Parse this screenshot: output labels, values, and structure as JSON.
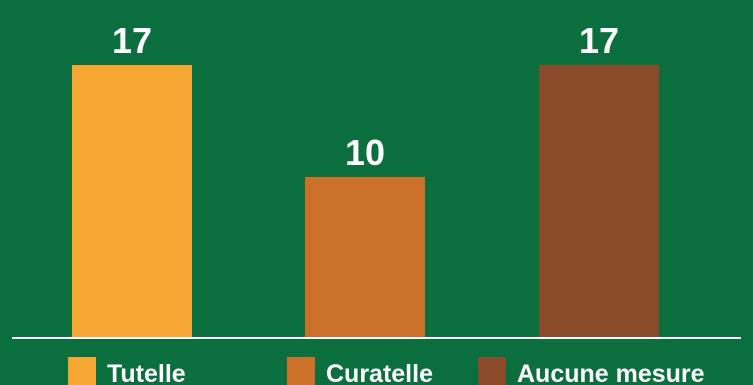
{
  "background_color": "#0b6e3f",
  "axis_color": "#ffffff",
  "chart_data": {
    "type": "bar",
    "categories": [
      "Tutelle",
      "Curatelle",
      "Aucune mesure"
    ],
    "values": [
      17,
      10,
      17
    ],
    "data_labels": [
      "17",
      "10",
      "17"
    ],
    "colors": [
      "#f6a733",
      "#cb7129",
      "#8a4b2b"
    ],
    "ylim": [
      0,
      17
    ],
    "grid": false,
    "legend_position": "bottom",
    "title": "",
    "xlabel": "",
    "ylabel": ""
  }
}
